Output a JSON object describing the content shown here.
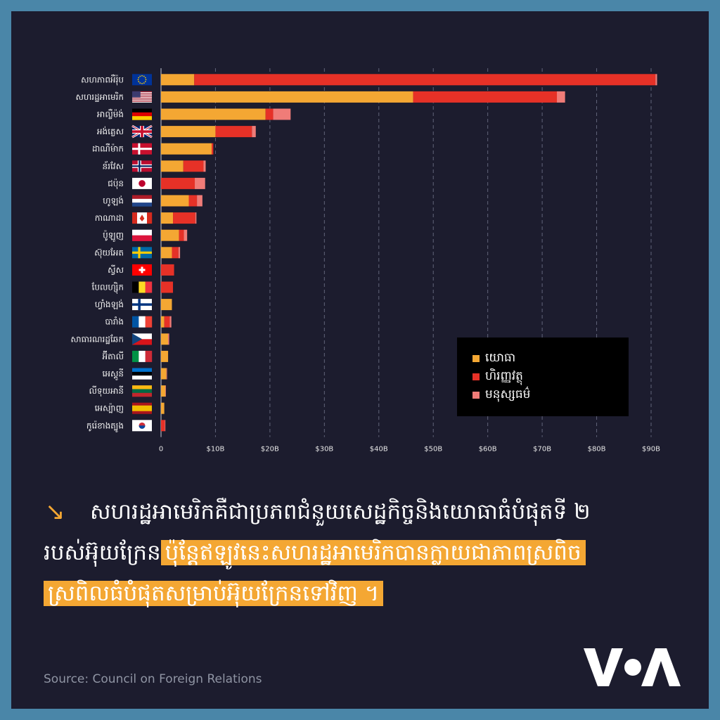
{
  "chart_data": {
    "type": "bar",
    "orientation": "horizontal",
    "stacked": true,
    "categories": [
      "សហភាពអឺរ៉ុប",
      "សហរដ្ឋអាមេរិក",
      "អាល្លឺម៉ង់",
      "អង់គ្លេស",
      "ដាណឺម៉ាក",
      "ន័រវែស",
      "ជប៉ុន",
      "ហូឡង់",
      "កាណាដា",
      "ប៉ូឡូញ",
      "ស៊ុយអែត",
      "ស្វីស",
      "បែលហ្ស៊ិក",
      "ហ្វាំងឡង់",
      "បារាំង",
      "សាធារណរដ្ឋឆែក",
      "អ៊ីតាលី",
      "អេស្តូនី",
      "លីទុយអានី",
      "អេស្ប៉ាញ",
      "កូរ៉េខាងត្បូង"
    ],
    "series": [
      {
        "name": "យោធា",
        "color": "#f4a733",
        "values": [
          6.1,
          46.3,
          19.2,
          10.0,
          9.3,
          4.1,
          0,
          5.1,
          2.2,
          3.3,
          2.0,
          0,
          0,
          2.0,
          0.6,
          1.3,
          1.3,
          1.0,
          0.8,
          0.6,
          0
        ]
      },
      {
        "name": "ហិរញ្ញវត្ថុ",
        "color": "#e63127",
        "values": [
          84.7,
          26.4,
          1.4,
          6.7,
          0.3,
          3.7,
          6.2,
          1.5,
          4.1,
          0.9,
          1.2,
          2.4,
          2.2,
          0,
          1.0,
          0,
          0,
          0,
          0,
          0,
          0.7
        ]
      },
      {
        "name": "មនុស្សធម៌",
        "color": "#f07c78",
        "values": [
          0.3,
          1.5,
          3.2,
          0.7,
          0,
          0.4,
          1.9,
          1.0,
          0.2,
          0.6,
          0.3,
          0,
          0,
          0,
          0.3,
          0.2,
          0,
          0.1,
          0.1,
          0,
          0.1
        ]
      }
    ],
    "xlim": [
      0,
      90
    ],
    "xticks": [
      "0",
      "$10B",
      "$20B",
      "$30B",
      "$40B",
      "$50B",
      "$60B",
      "$70B",
      "$80B",
      "$90B"
    ],
    "grid": true,
    "legend_position": "bottom-right"
  },
  "flags": [
    "eu",
    "us",
    "de",
    "gb",
    "dk",
    "no",
    "jp",
    "nl",
    "ca",
    "pl",
    "se",
    "ch",
    "be",
    "fi",
    "fr",
    "cz",
    "it",
    "ee",
    "lt",
    "es",
    "kr"
  ],
  "headline": {
    "line1": "សហរដ្ឋអាមេរិកគឺជាប្រភពជំនួយសេដ្ឋកិច្ចនិងយោធាធំបំផុតទី ២",
    "line2_plain": "របស់អ៊ុយក្រែន",
    "line2_highlight": "ប៉ុន្តែឥឡូវនេះសហរដ្ឋអាមេរិកបានក្លាយជាភាពស្រពិច",
    "line3_highlight": "ស្រពិលធំបំផុតសម្រាប់អ៊ុយក្រែនទៅវិញ ។"
  },
  "colors": {
    "background": "#1c1c2e",
    "frame": "#4a86a8",
    "accent": "#f4a733"
  },
  "source": "Source: Council on Foreign Relations",
  "logo_text": "VOA"
}
